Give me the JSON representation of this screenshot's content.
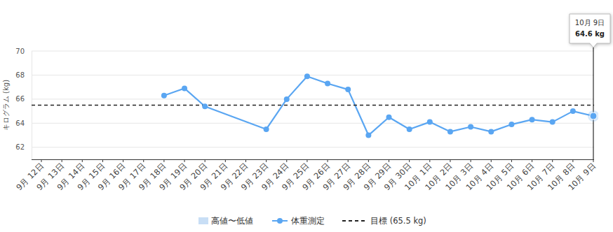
{
  "chart_data": {
    "type": "line",
    "y_label": "キログラム (kg)",
    "categories": [
      "9月 12日",
      "9月 13日",
      "9月 14日",
      "9月 15日",
      "9月 16日",
      "9月 17日",
      "9月 18日",
      "9月 19日",
      "9月 20日",
      "9月 21日",
      "9月 22日",
      "9月 23日",
      "9月 24日",
      "9月 25日",
      "9月 26日",
      "9月 27日",
      "9月 28日",
      "9月 29日",
      "9月 30日",
      "10月 1日",
      "10月 2日",
      "10月 3日",
      "10月 4日",
      "10月 5日",
      "10月 6日",
      "10月 7日",
      "10月 8日",
      "10月 9日"
    ],
    "series": [
      {
        "name": "高値〜低値",
        "type": "area",
        "color": "#c8def5",
        "values": [
          null,
          null,
          null,
          null,
          null,
          null,
          null,
          null,
          null,
          null,
          null,
          null,
          null,
          null,
          null,
          null,
          null,
          null,
          null,
          null,
          null,
          null,
          null,
          null,
          null,
          null,
          null,
          null
        ]
      },
      {
        "name": "体重測定",
        "type": "line",
        "color": "#5aa6f2",
        "marker": "circle",
        "values": [
          null,
          null,
          null,
          null,
          null,
          null,
          66.3,
          66.9,
          65.4,
          null,
          null,
          63.5,
          66.0,
          67.9,
          67.3,
          66.8,
          63.0,
          64.5,
          63.5,
          64.1,
          63.3,
          63.7,
          63.3,
          63.9,
          64.3,
          64.1,
          65.0,
          64.6
        ]
      },
      {
        "name": "目標 (65.5 kg)",
        "type": "line",
        "color": "#222222",
        "line_style": "dashed",
        "values": [
          65.5,
          65.5,
          65.5,
          65.5,
          65.5,
          65.5,
          65.5,
          65.5,
          65.5,
          65.5,
          65.5,
          65.5,
          65.5,
          65.5,
          65.5,
          65.5,
          65.5,
          65.5,
          65.5,
          65.5,
          65.5,
          65.5,
          65.5,
          65.5,
          65.5,
          65.5,
          65.5,
          65.5
        ]
      }
    ],
    "ylim": [
      61,
      70
    ],
    "yticks": [
      62,
      64,
      66,
      68,
      70
    ],
    "grid": true,
    "legend": "bottom",
    "tooltip": {
      "label": "10月 9日",
      "text": "64.6 kg"
    }
  }
}
